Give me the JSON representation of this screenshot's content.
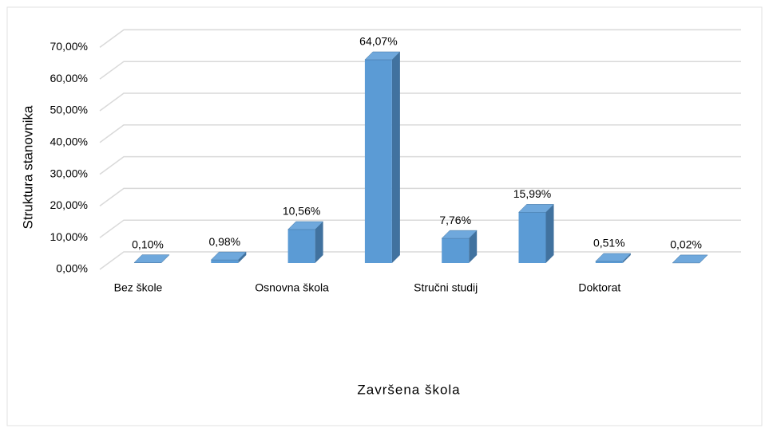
{
  "chart_data": {
    "type": "bar3d",
    "y_axis_label": "Struktura stanovnika",
    "x_axis_label": "Završena škola",
    "categories": [
      "Bez škole",
      null,
      "Osnovna škola",
      null,
      "Stručni studij",
      null,
      "Doktorat",
      null
    ],
    "values": [
      0.1,
      0.98,
      10.56,
      64.07,
      7.76,
      15.99,
      0.51,
      0.02
    ],
    "value_labels": [
      "0,10%",
      "0,98%",
      "10,56%",
      "64,07%",
      "7,76%",
      "15,99%",
      "0,51%",
      "0,02%"
    ],
    "color": "#5b9bd5",
    "ylim": [
      0,
      70
    ],
    "yticks": [
      {
        "value": 0,
        "label": "0,00%"
      },
      {
        "value": 10,
        "label": "10,00%"
      },
      {
        "value": 20,
        "label": "20,00%"
      },
      {
        "value": 30,
        "label": "30,00%"
      },
      {
        "value": 40,
        "label": "40,00%"
      },
      {
        "value": 50,
        "label": "50,00%"
      },
      {
        "value": 60,
        "label": "60,00%"
      },
      {
        "value": 70,
        "label": "70,00%"
      }
    ],
    "grid": true
  }
}
